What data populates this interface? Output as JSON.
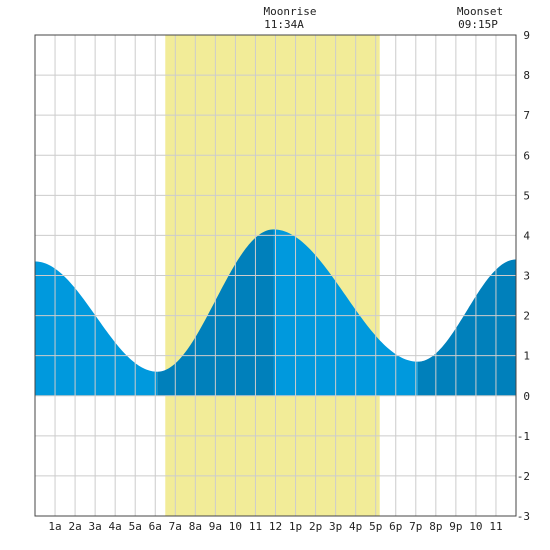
{
  "header": {
    "moonrise_label": "Moonrise",
    "moonrise_time": "11:34A",
    "moonset_label": "Moonset",
    "moonset_time": "09:15P"
  },
  "colors": {
    "daylight": "#f2ec98",
    "tide_light": "#0099dd",
    "tide_dark": "#0080bb",
    "grid": "#cccccc",
    "frame": "#444444"
  },
  "chart_data": {
    "type": "area",
    "title": "",
    "xlabel": "",
    "ylabel": "",
    "xlim": [
      0,
      24
    ],
    "ylim": [
      -3,
      9
    ],
    "y_ticks": [
      "9",
      "8",
      "7",
      "6",
      "5",
      "4",
      "3",
      "2",
      "1",
      "0",
      "-1",
      "-2",
      "-3"
    ],
    "x_tick_labels": [
      "1a",
      "2a",
      "3a",
      "4a",
      "5a",
      "6a",
      "7a",
      "8a",
      "9a",
      "10",
      "11",
      "12",
      "1p",
      "2p",
      "3p",
      "4p",
      "5p",
      "6p",
      "7p",
      "8p",
      "9p",
      "10",
      "11"
    ],
    "daylight_span_hours": [
      6.5,
      17.2
    ],
    "tide_extremes": [
      {
        "hour": 0.0,
        "height": 3.35
      },
      {
        "hour": 6.1,
        "height": 0.6
      },
      {
        "hour": 11.9,
        "height": 4.15
      },
      {
        "hour": 19.1,
        "height": 0.85
      },
      {
        "hour": 24.0,
        "height": 3.4
      }
    ],
    "shade_segments": [
      {
        "from": 0.0,
        "to": 6.1,
        "tone": "light"
      },
      {
        "from": 6.1,
        "to": 11.9,
        "tone": "dark"
      },
      {
        "from": 11.9,
        "to": 19.1,
        "tone": "light"
      },
      {
        "from": 19.1,
        "to": 24.0,
        "tone": "dark"
      }
    ],
    "grid": true
  }
}
